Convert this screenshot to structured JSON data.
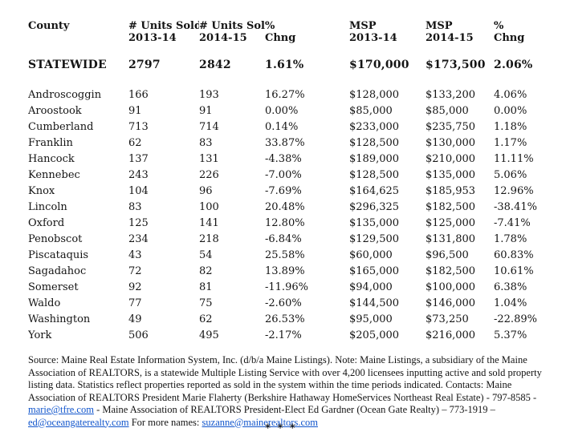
{
  "table": {
    "columns": [
      {
        "line1": "County",
        "line2": ""
      },
      {
        "line1": "# Units Sold",
        "line2": "2013-14"
      },
      {
        "line1": "# Units Sold",
        "line2": "2014-15"
      },
      {
        "line1": "%",
        "line2": "Chng"
      },
      {
        "line1": "MSP",
        "line2": "2013-14"
      },
      {
        "line1": "MSP",
        "line2": "2014-15"
      },
      {
        "line1": "%",
        "line2": "Chng"
      }
    ],
    "statewide": [
      "STATEWIDE",
      "2797",
      "2842",
      "1.61%",
      "$170,000",
      "$173,500",
      "2.06%"
    ],
    "rows": [
      [
        "Androscoggin",
        "166",
        "193",
        "16.27%",
        "$128,000",
        "$133,200",
        "4.06%"
      ],
      [
        "Aroostook",
        "91",
        "91",
        "0.00%",
        "$85,000",
        "$85,000",
        "0.00%"
      ],
      [
        "Cumberland",
        "713",
        "714",
        "0.14%",
        "$233,000",
        "$235,750",
        "1.18%"
      ],
      [
        "Franklin",
        "62",
        "83",
        "33.87%",
        "$128,500",
        "$130,000",
        "1.17%"
      ],
      [
        "Hancock",
        "137",
        "131",
        "-4.38%",
        "$189,000",
        "$210,000",
        "11.11%"
      ],
      [
        "Kennebec",
        "243",
        "226",
        "-7.00%",
        "$128,500",
        "$135,000",
        "5.06%"
      ],
      [
        "Knox",
        "104",
        "96",
        "-7.69%",
        "$164,625",
        "$185,953",
        "12.96%"
      ],
      [
        "Lincoln",
        "83",
        "100",
        "20.48%",
        "$296,325",
        "$182,500",
        "-38.41%"
      ],
      [
        "Oxford",
        "125",
        "141",
        "12.80%",
        "$135,000",
        "$125,000",
        "-7.41%"
      ],
      [
        "Penobscot",
        "234",
        "218",
        "-6.84%",
        "$129,500",
        "$131,800",
        "1.78%"
      ],
      [
        "Piscataquis",
        "43",
        "54",
        "25.58%",
        "$60,000",
        "$96,500",
        "60.83%"
      ],
      [
        "Sagadahoc",
        "72",
        "82",
        "13.89%",
        "$165,000",
        "$182,500",
        "10.61%"
      ],
      [
        "Somerset",
        "92",
        "81",
        "-11.96%",
        "$94,000",
        "$100,000",
        "6.38%"
      ],
      [
        "Waldo",
        "77",
        "75",
        "-2.60%",
        "$144,500",
        "$146,000",
        "1.04%"
      ],
      [
        "Washington",
        "49",
        "62",
        "26.53%",
        "$95,000",
        "$73,250",
        "-22.89%"
      ],
      [
        "York",
        "506",
        "495",
        "-2.17%",
        "$205,000",
        "$216,000",
        "5.37%"
      ]
    ]
  },
  "footnote": {
    "segments": [
      {
        "text": "Source: Maine Real Estate Information System, Inc. (d/b/a Maine Listings).  Note: Maine Listings, a subsidiary of the Maine Association of REALTORS, is a statewide Multiple Listing Service with over 4,200 licensees inputting active and sold property listing data.  Statistics reflect properties reported as sold in the system within the time periods indicated. Contacts: Maine Association of REALTORS President Marie Flaherty (Berkshire Hathaway HomeServices Northeast Real Estate) - 797-8585 - "
      },
      {
        "link": "marie@tfre.com"
      },
      {
        "text": "  - Maine Association of REALTORS President-Elect Ed Gardner (Ocean Gate Realty) – 773-1919 – "
      },
      {
        "link": "ed@oceangaterealty.com"
      },
      {
        "text": "   For more names:  "
      },
      {
        "link": "suzanne@mainerealtors.com"
      }
    ]
  },
  "separator": "* * *",
  "colors": {
    "link_blue": "#1155cc",
    "text": "#141414"
  }
}
